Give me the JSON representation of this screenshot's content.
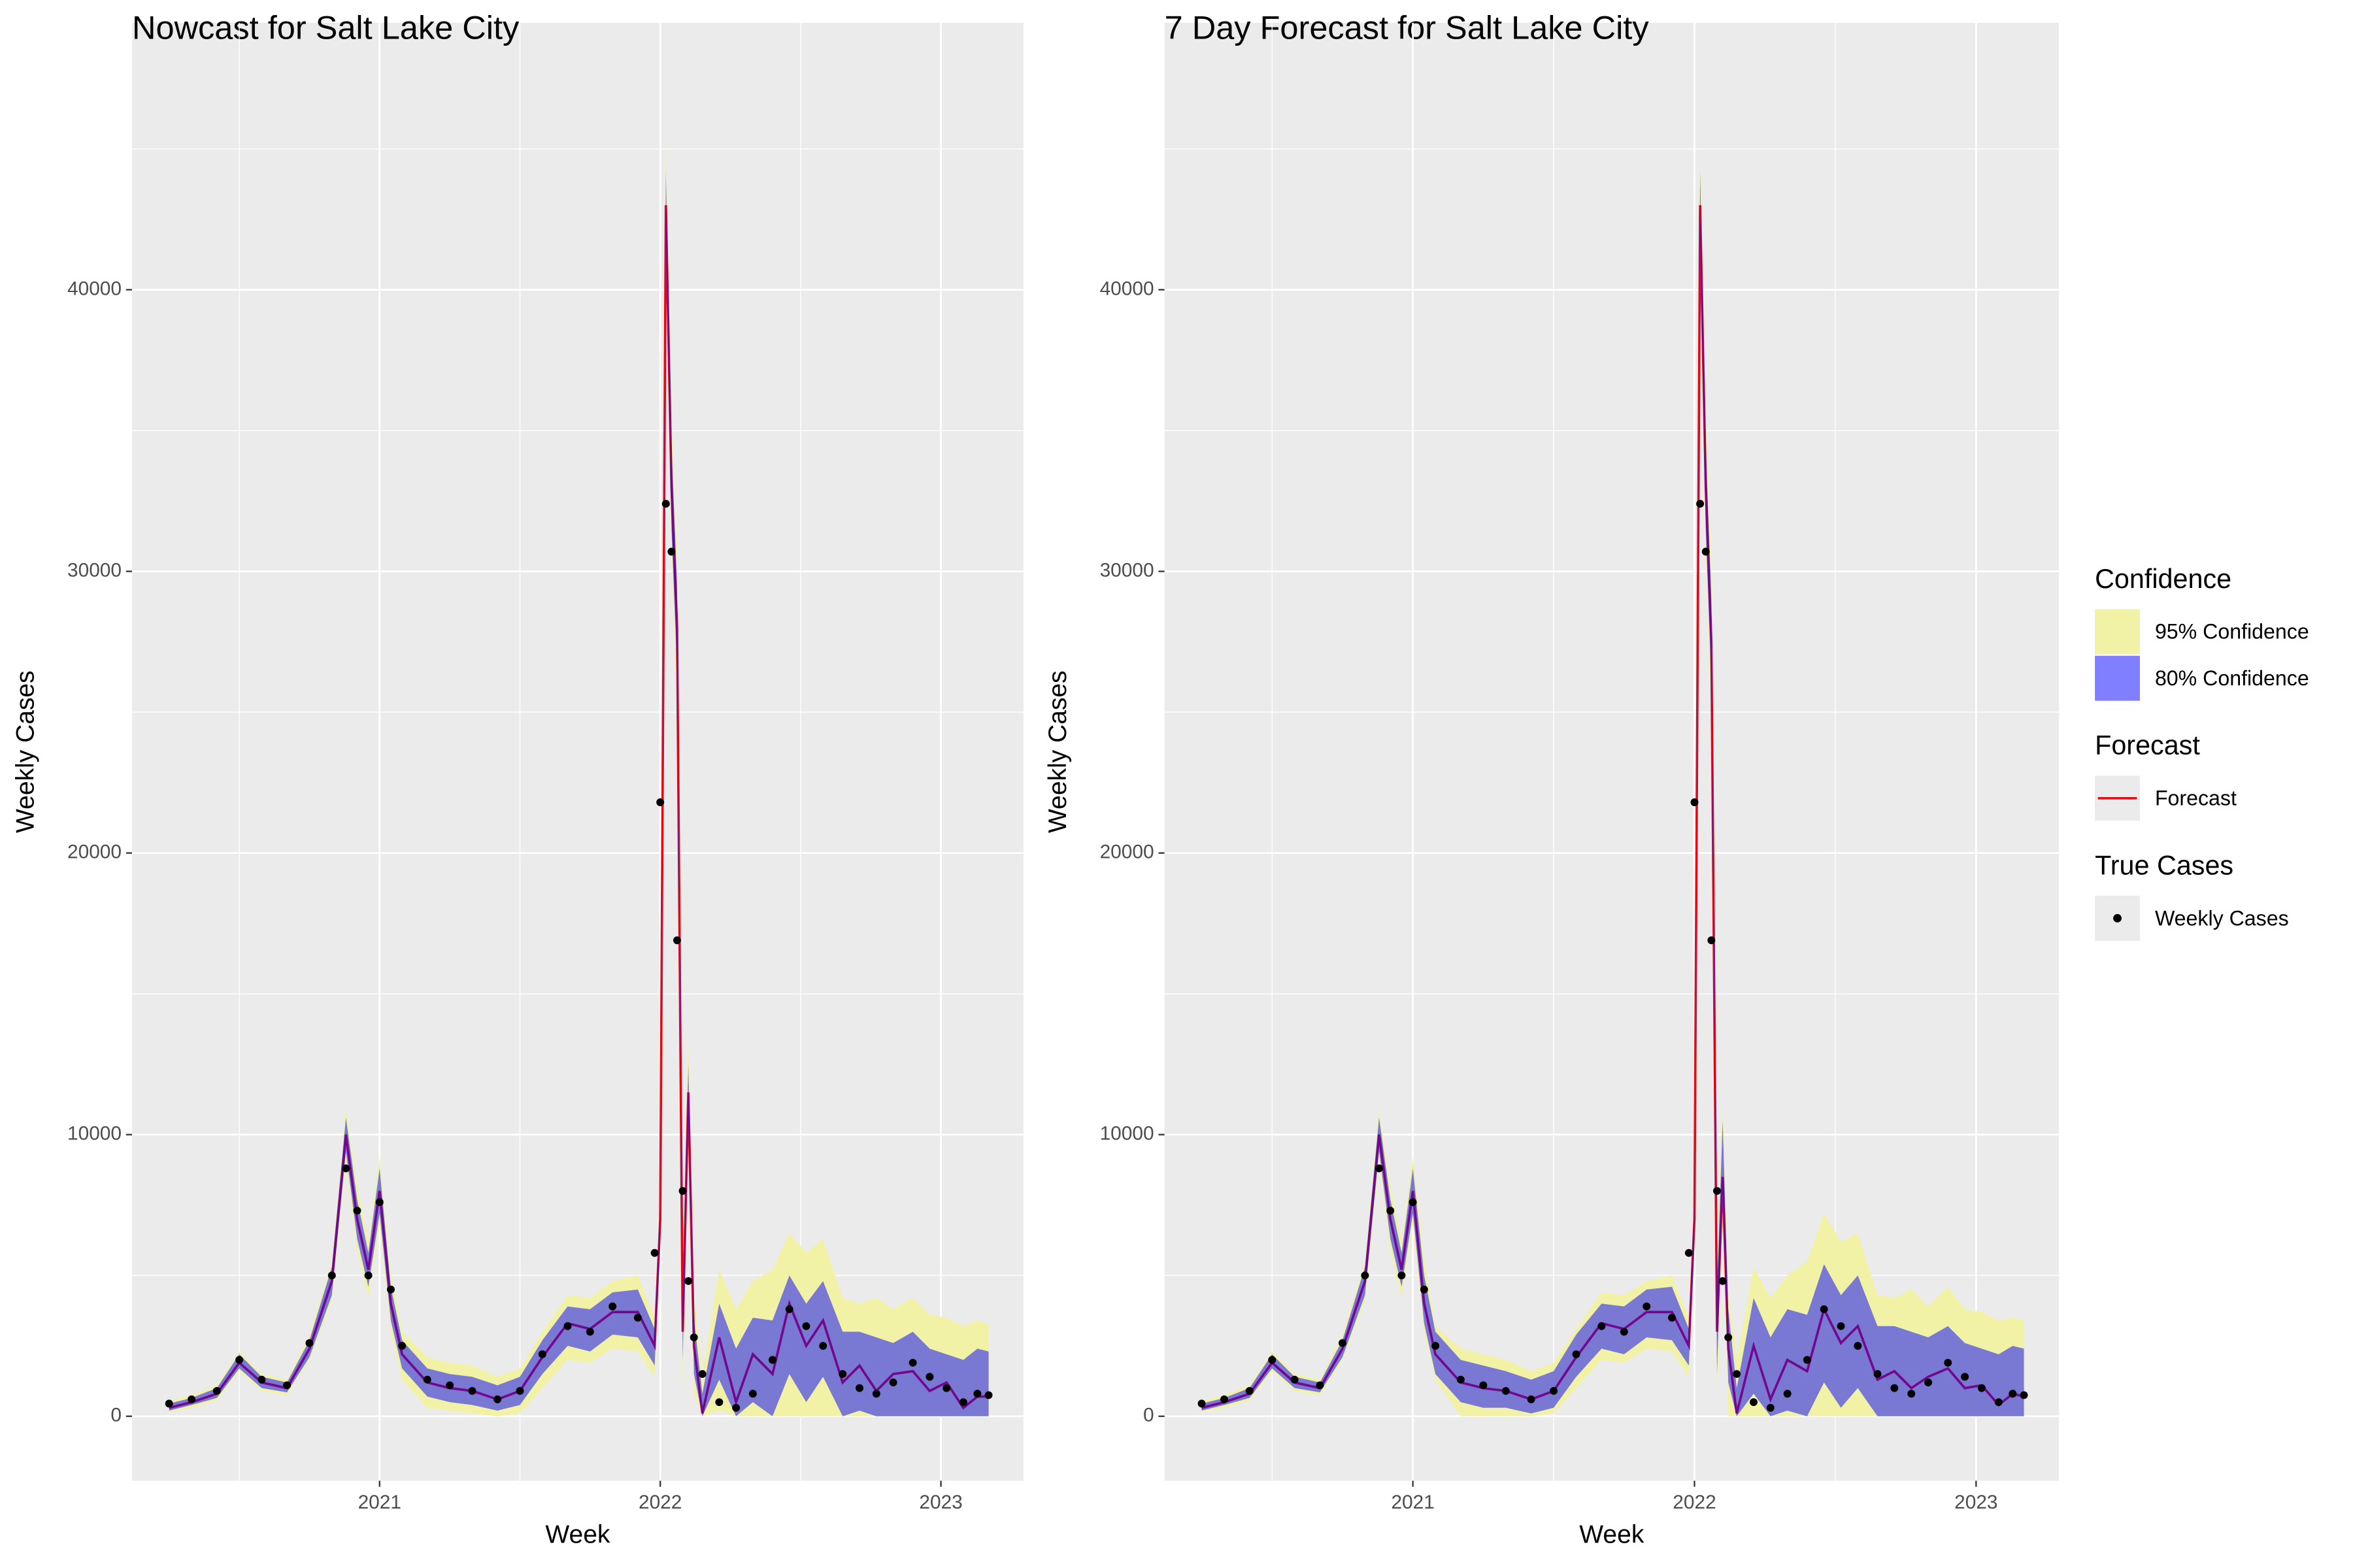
{
  "chart_data": [
    {
      "type": "line",
      "title": "Nowcast for Salt Lake City",
      "xlabel": "Week",
      "ylabel": "Weekly Cases",
      "xlim": [
        2020.118,
        2023.294
      ],
      "ylim": [
        -2290,
        49480
      ],
      "xticks": [
        2021,
        2022,
        2023
      ],
      "yticks": [
        0,
        10000,
        20000,
        30000,
        40000
      ],
      "grid": true,
      "legend": "right",
      "x": [
        2020.25,
        2020.33,
        2020.42,
        2020.5,
        2020.58,
        2020.67,
        2020.75,
        2020.83,
        2020.88,
        2020.92,
        2020.96,
        2021,
        2021.04,
        2021.08,
        2021.17,
        2021.25,
        2021.33,
        2021.42,
        2021.5,
        2021.58,
        2021.67,
        2021.75,
        2021.83,
        2021.92,
        2021.98,
        2022,
        2022.02,
        2022.04,
        2022.06,
        2022.08,
        2022.1,
        2022.12,
        2022.15,
        2022.21,
        2022.27,
        2022.33,
        2022.4,
        2022.46,
        2022.52,
        2022.58,
        2022.65,
        2022.71,
        2022.77,
        2022.83,
        2022.9,
        2022.96,
        2023.02,
        2023.08,
        2023.13,
        2023.17
      ],
      "series": [
        {
          "name": "95% Confidence",
          "group": "Confidence",
          "style": "band",
          "color": "#f2f2a6",
          "lower": [
            150,
            300,
            550,
            1600,
            900,
            750,
            2000,
            4100,
            9000,
            5900,
            4200,
            6800,
            3000,
            1300,
            300,
            200,
            100,
            0,
            100,
            1000,
            2000,
            1900,
            2400,
            2300,
            1400,
            6000,
            41000,
            30500,
            25500,
            1000,
            9500,
            800,
            0,
            200,
            0,
            0,
            0,
            0,
            0,
            0,
            0,
            0,
            0,
            0,
            0,
            0,
            0,
            0,
            0,
            0
          ],
          "upper": [
            550,
            750,
            1100,
            2300,
            1500,
            1300,
            2900,
            5500,
            10900,
            8200,
            6200,
            9200,
            5100,
            3000,
            2100,
            1900,
            1800,
            1400,
            1700,
            3000,
            4300,
            4200,
            4800,
            5000,
            3500,
            8000,
            45200,
            35500,
            30500,
            5000,
            13500,
            4300,
            1500,
            5200,
            3800,
            4800,
            5200,
            6500,
            5800,
            6300,
            4200,
            4000,
            4200,
            3800,
            4200,
            3600,
            3500,
            3200,
            3400,
            3300
          ]
        },
        {
          "name": "80% Confidence",
          "group": "Confidence",
          "style": "band",
          "color": "#0000ff",
          "lower": [
            200,
            400,
            650,
            1700,
            1000,
            850,
            2100,
            4300,
            9400,
            6300,
            4600,
            7200,
            3400,
            1700,
            700,
            500,
            400,
            200,
            400,
            1500,
            2500,
            2300,
            2900,
            2800,
            1800,
            6500,
            42000,
            31500,
            26500,
            2000,
            10500,
            1500,
            0,
            1300,
            0,
            500,
            0,
            1500,
            500,
            1400,
            0,
            200,
            0,
            0,
            0,
            0,
            0,
            0,
            0,
            0
          ],
          "upper": [
            450,
            650,
            1000,
            2200,
            1400,
            1200,
            2700,
            5300,
            10600,
            7700,
            5800,
            8800,
            4600,
            2700,
            1700,
            1500,
            1400,
            1100,
            1400,
            2700,
            3900,
            3800,
            4400,
            4500,
            3100,
            7500,
            44200,
            34500,
            29500,
            4000,
            12500,
            3500,
            800,
            4000,
            2400,
            3500,
            3400,
            5000,
            4000,
            4800,
            3000,
            3000,
            2800,
            2600,
            3000,
            2400,
            2200,
            2000,
            2400,
            2300
          ]
        },
        {
          "name": "Forecast",
          "group": "Forecast",
          "style": "line",
          "color": "#e3101a",
          "values": [
            300,
            500,
            800,
            1900,
            1200,
            1000,
            2400,
            4800,
            10000,
            7000,
            5200,
            8000,
            4000,
            2200,
            1200,
            1000,
            900,
            600,
            900,
            2100,
            3300,
            3100,
            3700,
            3700,
            2500,
            7000,
            43000,
            33000,
            28000,
            3000,
            11500,
            2500,
            100,
            2800,
            500,
            2200,
            1500,
            4000,
            2500,
            3400,
            1200,
            1800,
            900,
            1500,
            1600,
            900,
            1200,
            300,
            700,
            700
          ]
        },
        {
          "name": "Weekly Cases",
          "group": "True Cases",
          "style": "points",
          "color": "#000000",
          "values": [
            450,
            600,
            900,
            2000,
            1300,
            1100,
            2600,
            5000,
            8800,
            7300,
            5000,
            7600,
            4500,
            2500,
            1300,
            1100,
            900,
            600,
            900,
            2200,
            3200,
            3000,
            3900,
            3500,
            5800,
            21800,
            32400,
            30700,
            16900,
            8000,
            4800,
            2800,
            1500,
            500,
            300,
            800,
            2000,
            3800,
            3200,
            2500,
            1500,
            1000,
            800,
            1200,
            1900,
            1400,
            1000,
            500,
            800,
            750
          ]
        }
      ]
    },
    {
      "type": "line",
      "title": "7 Day Forecast for Salt Lake City",
      "xlabel": "Week",
      "ylabel": "Weekly Cases",
      "xlim": [
        2020.118,
        2023.294
      ],
      "ylim": [
        -2290,
        49480
      ],
      "xticks": [
        2021,
        2022,
        2023
      ],
      "yticks": [
        0,
        10000,
        20000,
        30000,
        40000
      ],
      "grid": true,
      "x": [
        2020.25,
        2020.33,
        2020.42,
        2020.5,
        2020.58,
        2020.67,
        2020.75,
        2020.83,
        2020.88,
        2020.92,
        2020.96,
        2021,
        2021.04,
        2021.08,
        2021.17,
        2021.25,
        2021.33,
        2021.42,
        2021.5,
        2021.58,
        2021.67,
        2021.75,
        2021.83,
        2021.92,
        2021.98,
        2022,
        2022.02,
        2022.04,
        2022.06,
        2022.08,
        2022.1,
        2022.12,
        2022.15,
        2022.21,
        2022.27,
        2022.33,
        2022.4,
        2022.46,
        2022.52,
        2022.58,
        2022.65,
        2022.71,
        2022.77,
        2022.83,
        2022.9,
        2022.96,
        2023.02,
        2023.08,
        2023.13,
        2023.17
      ],
      "series": [
        {
          "style": "band",
          "color": "#f2f2a6",
          "lower": [
            150,
            300,
            550,
            1600,
            900,
            750,
            2000,
            4100,
            9000,
            5900,
            4200,
            6800,
            3000,
            1300,
            0,
            0,
            0,
            0,
            100,
            1000,
            2000,
            1900,
            2400,
            2300,
            1400,
            6000,
            41000,
            30500,
            25000,
            500,
            7000,
            0,
            0,
            0,
            0,
            0,
            0,
            0,
            0,
            0,
            0,
            0,
            0,
            0,
            0,
            0,
            0,
            0,
            0,
            0
          ],
          "upper": [
            550,
            750,
            1100,
            2300,
            1500,
            1300,
            2900,
            5500,
            10900,
            8200,
            6200,
            9200,
            5600,
            3200,
            2400,
            2200,
            2000,
            1600,
            1900,
            3100,
            4400,
            4300,
            4800,
            5000,
            3500,
            8000,
            45200,
            35500,
            30500,
            5500,
            11000,
            4500,
            2000,
            5300,
            4200,
            5000,
            5500,
            7200,
            6200,
            6500,
            4300,
            4200,
            4500,
            3900,
            4600,
            3800,
            3700,
            3400,
            3500,
            3400
          ]
        },
        {
          "style": "band",
          "color": "#0000ff",
          "lower": [
            200,
            400,
            650,
            1700,
            1000,
            850,
            2100,
            4300,
            9400,
            6300,
            4600,
            7200,
            3300,
            1500,
            500,
            300,
            300,
            100,
            300,
            1400,
            2400,
            2200,
            2800,
            2700,
            1800,
            6500,
            42000,
            31500,
            26000,
            1500,
            8000,
            1200,
            0,
            800,
            0,
            200,
            0,
            1200,
            300,
            1000,
            0,
            0,
            0,
            0,
            0,
            0,
            0,
            0,
            0,
            0
          ],
          "upper": [
            450,
            650,
            1000,
            2200,
            1400,
            1200,
            2700,
            5300,
            10600,
            7700,
            5800,
            8800,
            5000,
            3000,
            2000,
            1800,
            1600,
            1300,
            1600,
            2900,
            4000,
            3900,
            4500,
            4600,
            3100,
            7500,
            44200,
            34500,
            29000,
            4500,
            10500,
            3800,
            1000,
            4200,
            2800,
            3800,
            3600,
            5400,
            4300,
            5000,
            3200,
            3200,
            3000,
            2800,
            3200,
            2600,
            2400,
            2200,
            2500,
            2400
          ]
        },
        {
          "style": "line",
          "color": "#e3101a",
          "values": [
            300,
            500,
            800,
            1900,
            1200,
            1000,
            2400,
            4800,
            10000,
            7000,
            5200,
            8000,
            4000,
            2200,
            1200,
            1000,
            900,
            600,
            900,
            2100,
            3300,
            3100,
            3700,
            3700,
            2500,
            7000,
            43000,
            33000,
            27500,
            3000,
            8500,
            2400,
            100,
            2500,
            600,
            2000,
            1600,
            3800,
            2600,
            3200,
            1300,
            1600,
            1000,
            1400,
            1700,
            1000,
            1100,
            400,
            800,
            700
          ]
        },
        {
          "style": "points",
          "color": "#000000",
          "values": [
            450,
            600,
            900,
            2000,
            1300,
            1100,
            2600,
            5000,
            8800,
            7300,
            5000,
            7600,
            4500,
            2500,
            1300,
            1100,
            900,
            600,
            900,
            2200,
            3200,
            3000,
            3900,
            3500,
            5800,
            21800,
            32400,
            30700,
            16900,
            8000,
            4800,
            2800,
            1500,
            500,
            300,
            800,
            2000,
            3800,
            3200,
            2500,
            1500,
            1000,
            800,
            1200,
            1900,
            1400,
            1000,
            500,
            800,
            750
          ]
        }
      ]
    }
  ]
}
